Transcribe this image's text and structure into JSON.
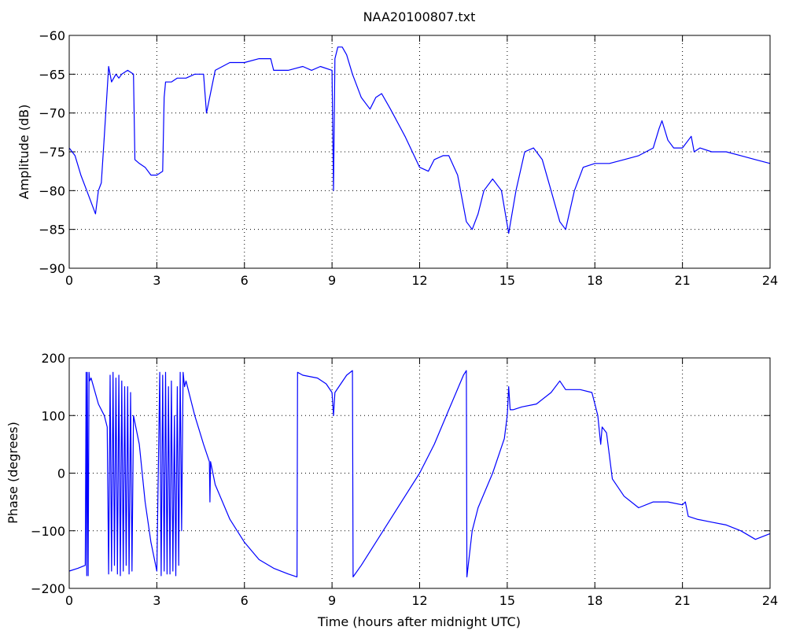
{
  "chart_data": [
    {
      "type": "line",
      "title": "NAA20100807.txt",
      "xlabel": "",
      "ylabel": "Amplitude (dB)",
      "xlim": [
        0,
        24
      ],
      "ylim": [
        -90,
        -60
      ],
      "xticks": [
        "0",
        "3",
        "6",
        "9",
        "12",
        "15",
        "18",
        "21",
        "24"
      ],
      "yticks": [
        "−90",
        "−85",
        "−80",
        "−75",
        "−70",
        "−65",
        "−60"
      ],
      "grid": true,
      "line_color": "#0000ff",
      "series": [
        {
          "x": [
            0,
            0.2,
            0.4,
            0.6,
            0.8,
            0.9,
            1.0,
            1.1,
            1.2,
            1.3,
            1.35,
            1.45,
            1.6,
            1.7,
            1.8,
            2.0,
            2.2,
            2.25,
            2.4,
            2.6,
            2.8,
            3.0,
            3.2,
            3.25,
            3.3,
            3.5,
            3.7,
            4.0,
            4.3,
            4.6,
            4.7,
            5.0,
            5.5,
            6.0,
            6.5,
            6.9,
            7.0,
            7.5,
            8.0,
            8.3,
            8.6,
            9.0,
            9.05,
            9.1,
            9.2,
            9.35,
            9.5,
            9.7,
            10.0,
            10.3,
            10.5,
            10.7,
            11.0,
            11.5,
            12.0,
            12.3,
            12.5,
            12.8,
            13.0,
            13.3,
            13.6,
            13.8,
            14.0,
            14.2,
            14.5,
            14.8,
            15.05,
            15.3,
            15.6,
            15.9,
            16.2,
            16.5,
            16.8,
            17.0,
            17.3,
            17.6,
            18.0,
            18.5,
            19.0,
            19.5,
            20.0,
            20.2,
            20.3,
            20.5,
            20.7,
            21.0,
            21.3,
            21.4,
            21.6,
            22.0,
            22.5,
            23.0,
            23.5,
            24.0
          ],
          "values": [
            -74.5,
            -75.5,
            -78,
            -80,
            -82,
            -83,
            -80,
            -79,
            -73,
            -67,
            -64,
            -66,
            -65,
            -65.5,
            -65,
            -64.5,
            -65,
            -76,
            -76.5,
            -77,
            -78,
            -78,
            -77.5,
            -68,
            -66,
            -66,
            -65.5,
            -65.5,
            -65,
            -65,
            -70,
            -64.5,
            -63.5,
            -63.5,
            -63,
            -63,
            -64.5,
            -64.5,
            -64,
            -64.5,
            -64,
            -64.5,
            -80,
            -63,
            -61.5,
            -61.5,
            -62.5,
            -65,
            -68,
            -69.5,
            -68,
            -67.5,
            -69.5,
            -73,
            -77,
            -77.5,
            -76,
            -75.5,
            -75.5,
            -78,
            -84,
            -85,
            -83,
            -80,
            -78.5,
            -80,
            -85.5,
            -80,
            -75,
            -74.5,
            -76,
            -80,
            -84,
            -85,
            -80,
            -77,
            -76.5,
            -76.5,
            -76,
            -75.5,
            -74.5,
            -72,
            -71,
            -73.5,
            -74.5,
            -74.5,
            -73,
            -75,
            -74.5,
            -75,
            -75,
            -75.5,
            -76,
            -76.5
          ]
        }
      ]
    },
    {
      "type": "line",
      "title": "",
      "xlabel": "Time (hours after midnight UTC)",
      "ylabel": "Phase (degrees)",
      "xlim": [
        0,
        24
      ],
      "ylim": [
        -200,
        200
      ],
      "xticks": [
        "0",
        "3",
        "6",
        "9",
        "12",
        "15",
        "18",
        "21",
        "24"
      ],
      "yticks": [
        "−200",
        "−100",
        "0",
        "100",
        "200"
      ],
      "grid": true,
      "line_color": "#0000ff",
      "series": [
        {
          "x": [
            0,
            0.3,
            0.55,
            0.58,
            0.6,
            0.62,
            0.65,
            0.68,
            0.7,
            0.75,
            1.0,
            1.2,
            1.3,
            1.35,
            1.4,
            1.45,
            1.5,
            1.55,
            1.6,
            1.65,
            1.7,
            1.75,
            1.8,
            1.85,
            1.9,
            1.95,
            2.0,
            2.05,
            2.1,
            2.15,
            2.2,
            2.4,
            2.6,
            2.8,
            3.0,
            3.1,
            3.15,
            3.2,
            3.25,
            3.3,
            3.35,
            3.4,
            3.45,
            3.5,
            3.55,
            3.6,
            3.65,
            3.7,
            3.75,
            3.8,
            3.85,
            3.9,
            3.95,
            4.0,
            4.3,
            4.6,
            4.8,
            4.82,
            4.84,
            5.0,
            5.5,
            6.0,
            6.5,
            7.0,
            7.5,
            7.8,
            7.82,
            8.0,
            8.5,
            8.8,
            9.0,
            9.05,
            9.1,
            9.5,
            9.7,
            9.72,
            10.0,
            10.5,
            11.0,
            11.5,
            12.0,
            12.5,
            13.0,
            13.5,
            13.6,
            13.62,
            13.8,
            14.0,
            14.5,
            14.9,
            15.0,
            15.05,
            15.1,
            15.2,
            15.5,
            16.0,
            16.5,
            16.8,
            17.0,
            17.5,
            17.9,
            18.0,
            18.1,
            18.2,
            18.25,
            18.4,
            18.6,
            19.0,
            19.5,
            20.0,
            20.5,
            21.0,
            21.1,
            21.2,
            21.5,
            22.0,
            22.5,
            23.0,
            23.5,
            24.0
          ],
          "values": [
            -170,
            -165,
            -160,
            175,
            -178,
            175,
            -178,
            175,
            160,
            165,
            120,
            100,
            80,
            -175,
            170,
            -170,
            175,
            -160,
            165,
            -175,
            170,
            -178,
            160,
            -170,
            150,
            -160,
            150,
            -175,
            140,
            -170,
            100,
            50,
            -50,
            -120,
            -170,
            175,
            -178,
            170,
            -170,
            175,
            -175,
            150,
            -175,
            160,
            -170,
            100,
            -178,
            150,
            -160,
            175,
            -100,
            175,
            150,
            160,
            100,
            50,
            20,
            -50,
            20,
            -20,
            -80,
            -120,
            -150,
            -165,
            -175,
            -180,
            175,
            170,
            165,
            155,
            140,
            100,
            140,
            170,
            178,
            -180,
            -160,
            -120,
            -80,
            -40,
            0,
            50,
            110,
            170,
            178,
            -180,
            -100,
            -60,
            0,
            60,
            100,
            150,
            110,
            110,
            115,
            120,
            140,
            160,
            145,
            145,
            140,
            120,
            100,
            50,
            80,
            70,
            -10,
            -40,
            -60,
            -50,
            -50,
            -55,
            -50,
            -75,
            -80,
            -85,
            -90,
            -100,
            -115,
            -105
          ]
        }
      ]
    }
  ]
}
